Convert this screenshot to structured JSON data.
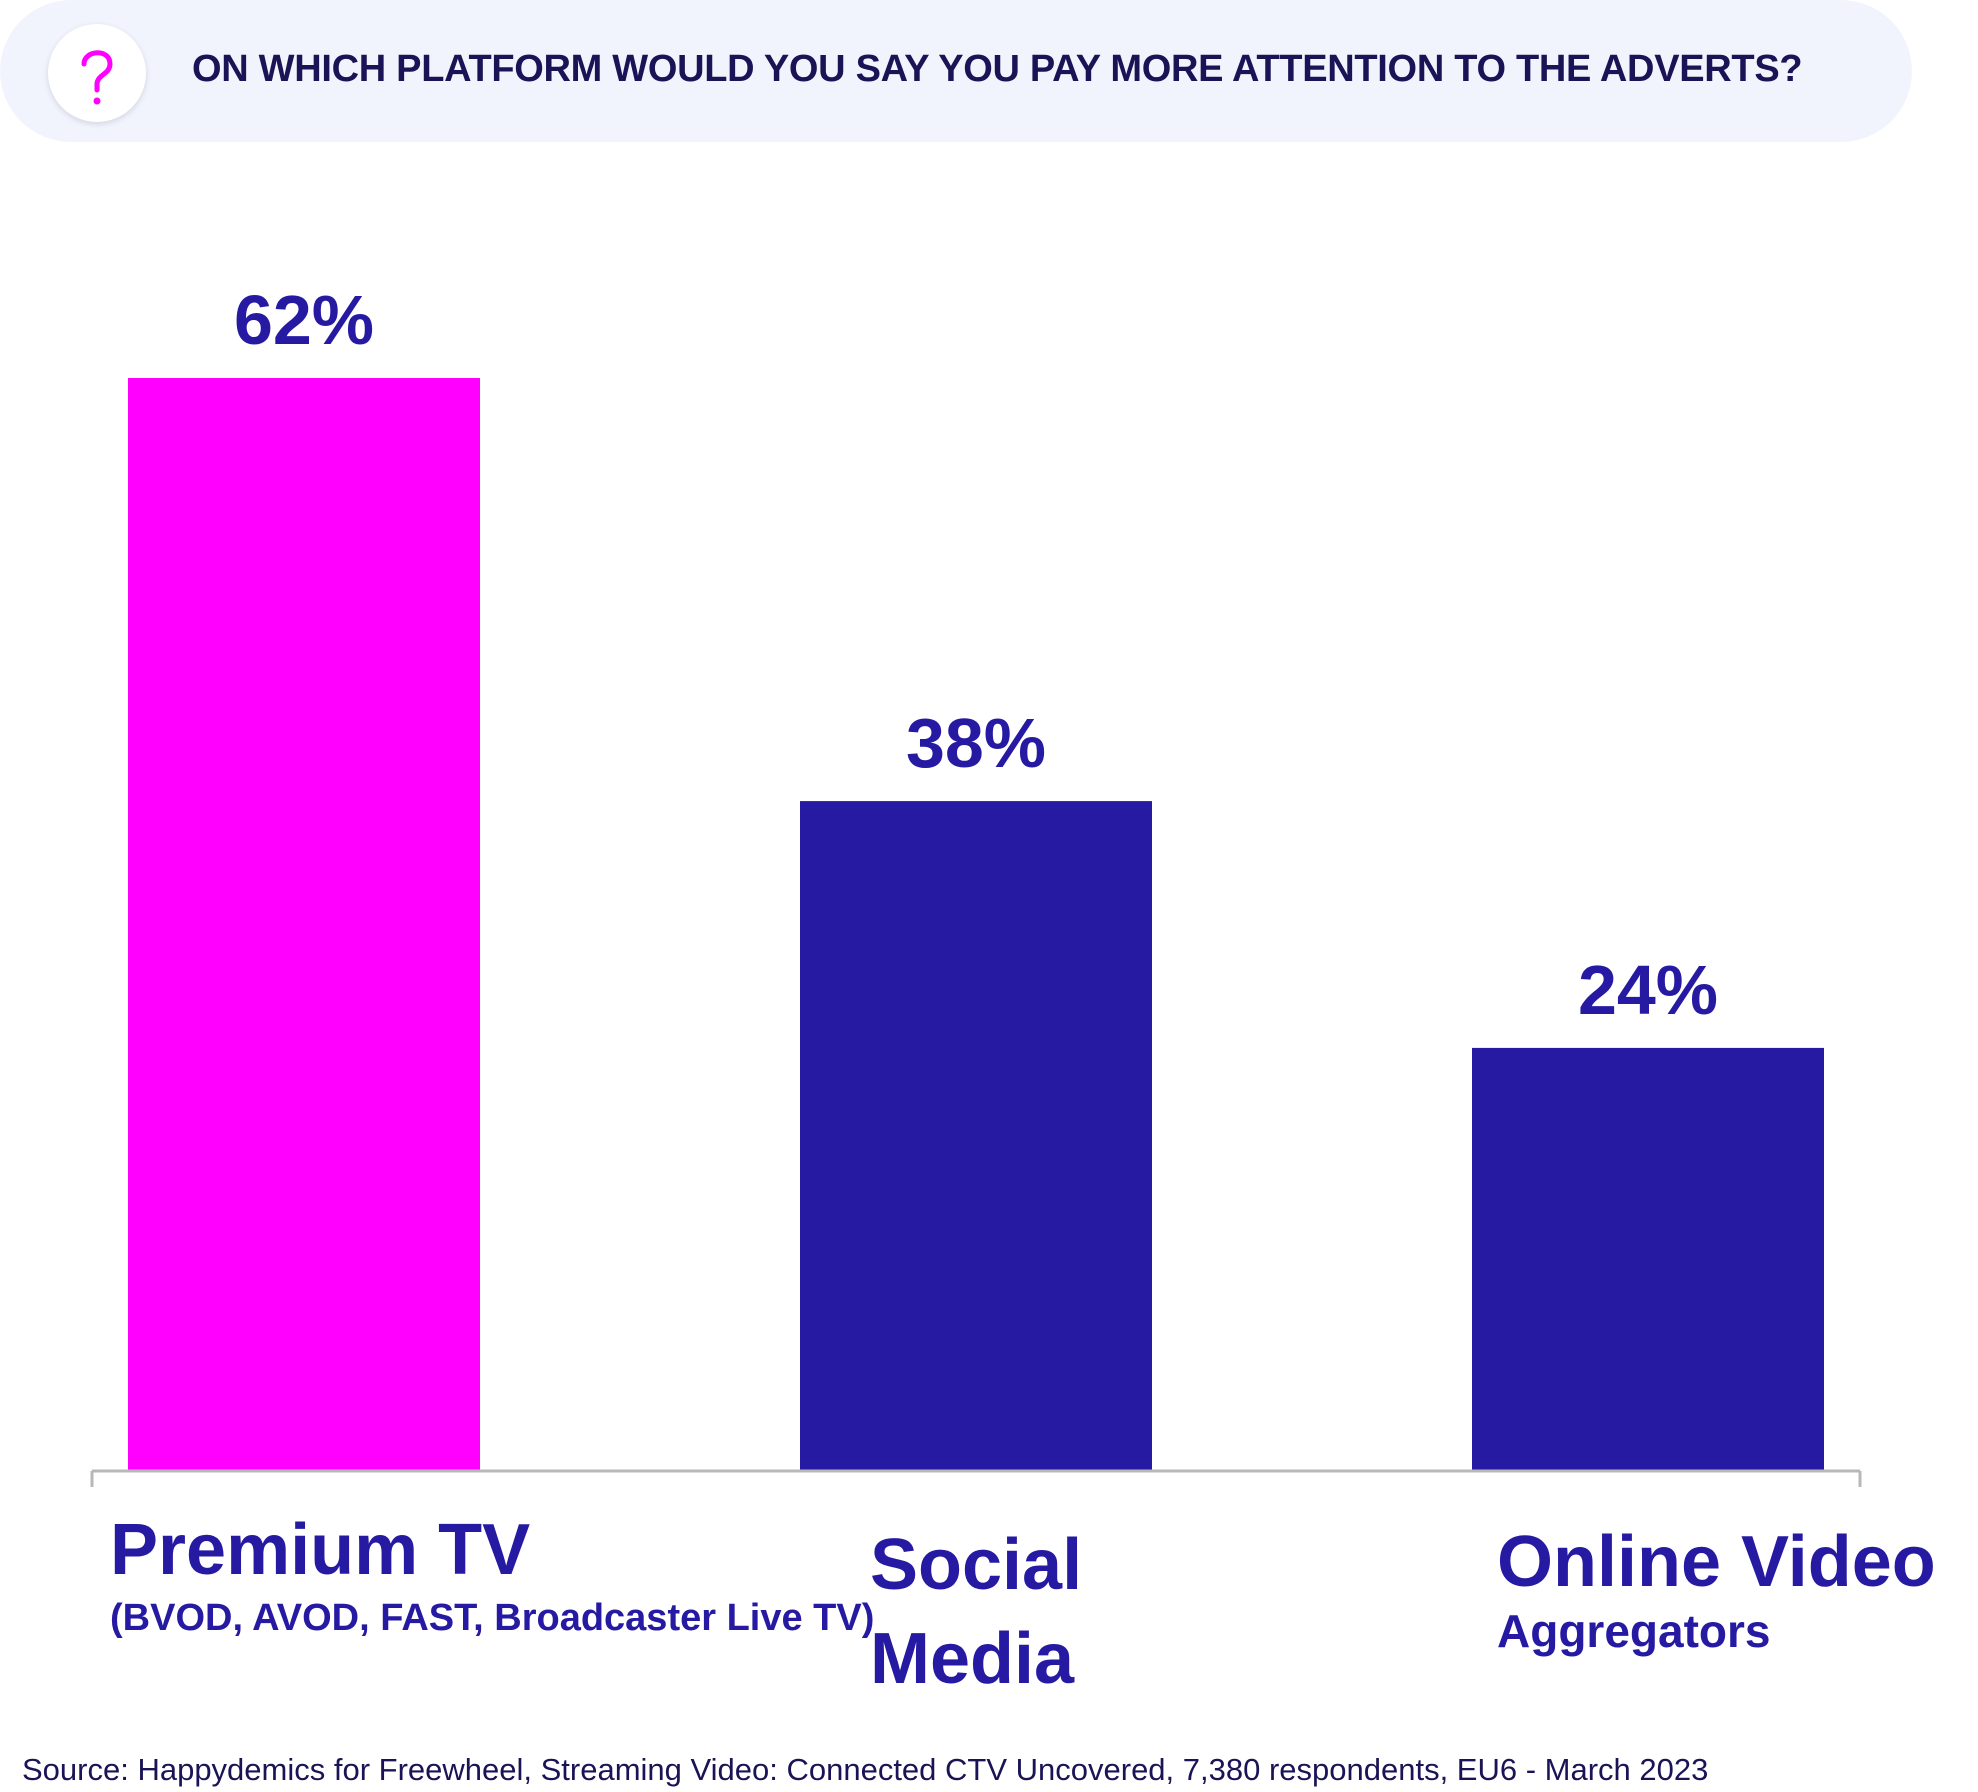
{
  "question": {
    "icon": "question-icon",
    "text": "ON WHICH PLATFORM WOULD YOU SAY YOU PAY MORE ATTENTION TO THE ADVERTS?"
  },
  "colors": {
    "highlight": "#ff00ff",
    "bar": "#261aa3",
    "text": "#261aa3",
    "banner": "#f1f4fc"
  },
  "chart_data": {
    "type": "bar",
    "categories": [
      "Premium TV",
      "Social Media",
      "Online Video Aggregators"
    ],
    "category_labels": [
      {
        "main": "Premium TV",
        "sub": "(BVOD, AVOD, FAST, Broadcaster Live TV)"
      },
      {
        "main": "Social Media",
        "sub": ""
      },
      {
        "main": "Online Video",
        "sub": "Aggregators"
      }
    ],
    "values": [
      62,
      38,
      24
    ],
    "data_labels": [
      "62%",
      "38%",
      "24%"
    ],
    "bar_colors": [
      "#ff00ff",
      "#261aa3",
      "#261aa3"
    ],
    "unit": "%",
    "ylim": [
      0,
      62
    ],
    "grid": false,
    "legend": "none"
  },
  "source": "Source: Happydemics for Freewheel, Streaming Video: Connected CTV Uncovered, 7,380 respondents, EU6 - March 2023"
}
